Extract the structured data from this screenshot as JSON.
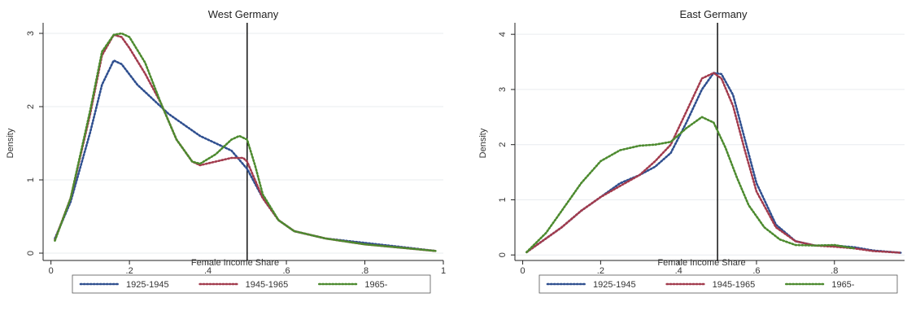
{
  "colors": {
    "series": [
      "#2f4f8f",
      "#a23b4d",
      "#4c8a2e"
    ],
    "grid": "#e9ecef",
    "axis": "#222222",
    "vline": "#000000"
  },
  "chart_data": [
    {
      "type": "line",
      "title": "West Germany",
      "xlabel": "Female Income Share",
      "ylabel": "Density",
      "xlim": [
        -0.02,
        1.0
      ],
      "ylim": [
        -0.1,
        3.1
      ],
      "xticks": [
        0,
        0.2,
        0.4,
        0.6,
        0.8,
        1
      ],
      "xtick_labels": [
        "0",
        ".2",
        ".4",
        ".6",
        ".8",
        "1"
      ],
      "yticks": [
        0,
        1,
        2,
        3
      ],
      "ytick_labels": [
        "0",
        "1",
        "2",
        "3"
      ],
      "grid": true,
      "reference_line_x": 0.5,
      "legend_position": "bottom",
      "series": [
        {
          "name": "1925-1945",
          "x": [
            0.01,
            0.05,
            0.1,
            0.13,
            0.16,
            0.18,
            0.22,
            0.26,
            0.3,
            0.34,
            0.38,
            0.42,
            0.46,
            0.5,
            0.54,
            0.58,
            0.62,
            0.7,
            0.8,
            0.9,
            0.98
          ],
          "y": [
            0.2,
            0.7,
            1.65,
            2.3,
            2.63,
            2.58,
            2.3,
            2.1,
            1.9,
            1.75,
            1.6,
            1.5,
            1.4,
            1.15,
            0.75,
            0.45,
            0.3,
            0.2,
            0.14,
            0.08,
            0.03
          ]
        },
        {
          "name": "1945-1965",
          "x": [
            0.01,
            0.05,
            0.1,
            0.13,
            0.16,
            0.18,
            0.2,
            0.24,
            0.28,
            0.32,
            0.36,
            0.38,
            0.42,
            0.46,
            0.49,
            0.5,
            0.54,
            0.58,
            0.62,
            0.7,
            0.8,
            0.9,
            0.98
          ],
          "y": [
            0.18,
            0.75,
            1.9,
            2.7,
            2.98,
            2.95,
            2.8,
            2.45,
            2.05,
            1.55,
            1.25,
            1.2,
            1.25,
            1.3,
            1.3,
            1.25,
            0.75,
            0.45,
            0.3,
            0.2,
            0.12,
            0.07,
            0.03
          ]
        },
        {
          "name": "1965-",
          "x": [
            0.01,
            0.05,
            0.1,
            0.13,
            0.16,
            0.18,
            0.2,
            0.24,
            0.28,
            0.32,
            0.36,
            0.38,
            0.42,
            0.46,
            0.48,
            0.5,
            0.52,
            0.54,
            0.58,
            0.62,
            0.7,
            0.8,
            0.9,
            0.98
          ],
          "y": [
            0.17,
            0.75,
            1.95,
            2.75,
            2.98,
            3.0,
            2.95,
            2.6,
            2.05,
            1.55,
            1.25,
            1.22,
            1.35,
            1.55,
            1.6,
            1.55,
            1.2,
            0.8,
            0.45,
            0.3,
            0.2,
            0.12,
            0.07,
            0.03
          ]
        }
      ]
    },
    {
      "type": "line",
      "title": "East Germany",
      "xlabel": "Female Income Share",
      "ylabel": "Density",
      "xlim": [
        -0.02,
        0.98
      ],
      "ylim": [
        -0.1,
        4.15
      ],
      "xticks": [
        0,
        0.2,
        0.4,
        0.6,
        0.8
      ],
      "xtick_labels": [
        "0",
        ".2",
        ".4",
        ".6",
        ".8"
      ],
      "yticks": [
        0,
        1,
        2,
        3,
        4
      ],
      "ytick_labels": [
        "0",
        "1",
        "2",
        "3",
        "4"
      ],
      "grid": true,
      "reference_line_x": 0.5,
      "legend_position": "bottom",
      "series": [
        {
          "name": "1925-1945",
          "x": [
            0.01,
            0.06,
            0.1,
            0.15,
            0.2,
            0.25,
            0.3,
            0.34,
            0.38,
            0.42,
            0.46,
            0.49,
            0.51,
            0.54,
            0.57,
            0.6,
            0.65,
            0.7,
            0.75,
            0.8,
            0.85,
            0.9,
            0.97
          ],
          "y": [
            0.05,
            0.3,
            0.5,
            0.8,
            1.05,
            1.3,
            1.45,
            1.6,
            1.85,
            2.4,
            3.0,
            3.3,
            3.28,
            2.9,
            2.1,
            1.3,
            0.55,
            0.25,
            0.17,
            0.17,
            0.14,
            0.08,
            0.04
          ]
        },
        {
          "name": "1945-1965",
          "x": [
            0.01,
            0.06,
            0.1,
            0.15,
            0.2,
            0.25,
            0.3,
            0.34,
            0.38,
            0.42,
            0.46,
            0.49,
            0.51,
            0.54,
            0.57,
            0.6,
            0.65,
            0.7,
            0.75,
            0.8,
            0.85,
            0.9,
            0.97
          ],
          "y": [
            0.05,
            0.3,
            0.5,
            0.8,
            1.05,
            1.25,
            1.45,
            1.7,
            2.0,
            2.6,
            3.2,
            3.3,
            3.2,
            2.7,
            1.9,
            1.15,
            0.5,
            0.25,
            0.17,
            0.15,
            0.12,
            0.07,
            0.04
          ]
        },
        {
          "name": "1965-",
          "x": [
            0.01,
            0.06,
            0.1,
            0.15,
            0.2,
            0.25,
            0.3,
            0.34,
            0.38,
            0.42,
            0.46,
            0.49,
            0.52,
            0.55,
            0.58,
            0.62,
            0.66,
            0.7,
            0.75,
            0.8,
            0.85
          ],
          "y": [
            0.05,
            0.4,
            0.8,
            1.3,
            1.7,
            1.9,
            1.98,
            2.0,
            2.05,
            2.3,
            2.5,
            2.4,
            1.95,
            1.4,
            0.9,
            0.5,
            0.28,
            0.18,
            0.17,
            0.18,
            0.12
          ]
        }
      ]
    }
  ]
}
